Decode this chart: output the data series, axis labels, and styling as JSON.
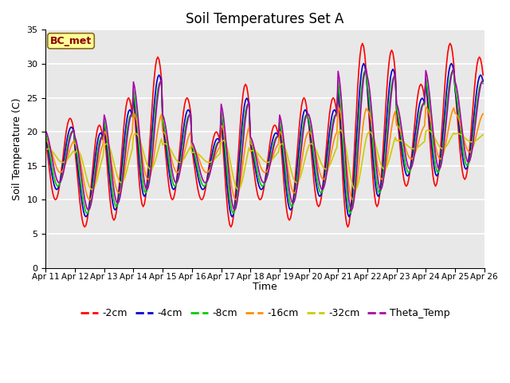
{
  "title": "Soil Temperatures Set A",
  "xlabel": "Time",
  "ylabel": "Soil Temperature (C)",
  "ylim": [
    0,
    35
  ],
  "yticks": [
    0,
    5,
    10,
    15,
    20,
    25,
    30,
    35
  ],
  "x_labels": [
    "Apr 11",
    "Apr 12",
    "Apr 13",
    "Apr 14",
    "Apr 15",
    "Apr 16",
    "Apr 17",
    "Apr 18",
    "Apr 19",
    "Apr 20",
    "Apr 21",
    "Apr 22",
    "Apr 23",
    "Apr 24",
    "Apr 25",
    "Apr 26"
  ],
  "annotation": "BC_met",
  "annotation_color": "#8B0000",
  "annotation_bg": "#FFFF99",
  "lines": [
    {
      "label": "-2cm",
      "color": "#FF0000",
      "lw": 1.2
    },
    {
      "label": "-4cm",
      "color": "#0000CC",
      "lw": 1.2
    },
    {
      "label": "-8cm",
      "color": "#00CC00",
      "lw": 1.2
    },
    {
      "label": "-16cm",
      "color": "#FF8C00",
      "lw": 1.2
    },
    {
      "label": "-32cm",
      "color": "#CCCC00",
      "lw": 1.2
    },
    {
      "label": "Theta_Temp",
      "color": "#AA00AA",
      "lw": 1.2
    }
  ],
  "bg_color": "#E8E8E8",
  "fig_bg": "#FFFFFF",
  "title_fontsize": 12,
  "legend_fontsize": 9,
  "days": 15
}
